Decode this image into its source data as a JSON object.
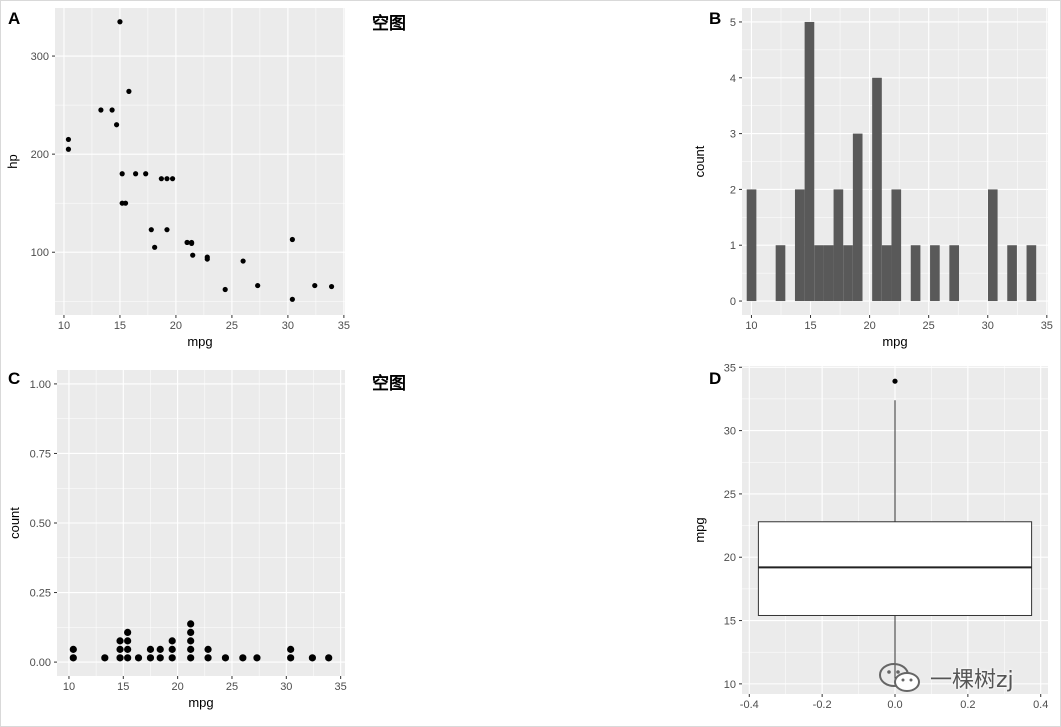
{
  "panels": {
    "A": {
      "letter": "A"
    },
    "B": {
      "letter": "B"
    },
    "C": {
      "letter": "C"
    },
    "D": {
      "letter": "D"
    }
  },
  "empty_labels": [
    "空图",
    "空图"
  ],
  "watermark": {
    "text": "一棵树zj",
    "icon": "wechat-icon"
  },
  "colors": {
    "panel_bg": "#ebebeb",
    "grid": "#ffffff",
    "bar": "#595959",
    "point": "#000000"
  },
  "chart_data": [
    {
      "panel": "A",
      "type": "scatter",
      "xlabel": "mpg",
      "ylabel": "hp",
      "xlim": [
        9.2,
        35.1
      ],
      "ylim": [
        36,
        349
      ],
      "xticks": [
        10,
        15,
        20,
        25,
        30,
        35
      ],
      "yticks": [
        100,
        200,
        300
      ],
      "points": [
        [
          21.0,
          110
        ],
        [
          21.0,
          110
        ],
        [
          22.8,
          93
        ],
        [
          21.4,
          110
        ],
        [
          18.7,
          175
        ],
        [
          18.1,
          105
        ],
        [
          14.3,
          245
        ],
        [
          24.4,
          62
        ],
        [
          22.8,
          95
        ],
        [
          19.2,
          123
        ],
        [
          17.8,
          123
        ],
        [
          16.4,
          180
        ],
        [
          17.3,
          180
        ],
        [
          15.2,
          180
        ],
        [
          10.4,
          205
        ],
        [
          10.4,
          215
        ],
        [
          14.7,
          230
        ],
        [
          32.4,
          66
        ],
        [
          30.4,
          52
        ],
        [
          33.9,
          65
        ],
        [
          21.5,
          97
        ],
        [
          15.5,
          150
        ],
        [
          15.2,
          150
        ],
        [
          13.3,
          245
        ],
        [
          19.2,
          175
        ],
        [
          27.3,
          66
        ],
        [
          26.0,
          91
        ],
        [
          30.4,
          113
        ],
        [
          15.8,
          264
        ],
        [
          19.7,
          175
        ],
        [
          15.0,
          335
        ],
        [
          21.4,
          109
        ]
      ]
    },
    {
      "panel": "B",
      "type": "bar",
      "xlabel": "mpg",
      "ylabel": "count",
      "xlim": [
        9.2,
        35.1
      ],
      "ylim": [
        -0.25,
        5.25
      ],
      "xticks": [
        10,
        15,
        20,
        25,
        30,
        35
      ],
      "yticks": [
        0,
        1,
        2,
        3,
        4,
        5
      ],
      "binwidth": 0.8167,
      "bins_start": 10.0083,
      "counts": [
        2,
        0,
        0,
        1,
        0,
        2,
        5,
        1,
        1,
        2,
        1,
        3,
        0,
        4,
        1,
        2,
        0,
        1,
        0,
        1,
        0,
        1,
        0,
        0,
        0,
        2,
        0,
        1,
        0,
        1
      ]
    },
    {
      "panel": "C",
      "type": "scatter",
      "subtype": "dotplot",
      "xlabel": "mpg",
      "ylabel": "count",
      "xlim": [
        8.9,
        35.4
      ],
      "ylim": [
        -0.05,
        1.05
      ],
      "xticks": [
        10,
        15,
        20,
        25,
        30,
        35
      ],
      "yticks": [
        "0.00",
        "0.25",
        "0.50",
        "0.75",
        "1.00"
      ],
      "stacks": [
        [
          10.4,
          2
        ],
        [
          13.3,
          1
        ],
        [
          14.7,
          3
        ],
        [
          15.4,
          4
        ],
        [
          16.4,
          1
        ],
        [
          17.5,
          2
        ],
        [
          18.4,
          2
        ],
        [
          19.5,
          3
        ],
        [
          21.2,
          5
        ],
        [
          22.8,
          2
        ],
        [
          24.4,
          1
        ],
        [
          26.0,
          1
        ],
        [
          27.3,
          1
        ],
        [
          30.4,
          2
        ],
        [
          32.4,
          1
        ],
        [
          33.9,
          1
        ]
      ]
    },
    {
      "panel": "D",
      "type": "box",
      "xlabel": "",
      "ylabel": "mpg",
      "xlim": [
        -0.42,
        0.42
      ],
      "ylim": [
        9.2,
        35.1
      ],
      "xticks": [
        "-0.4",
        "-0.2",
        "0.0",
        "0.2",
        "0.4"
      ],
      "yticks": [
        10,
        15,
        20,
        25,
        30,
        35
      ],
      "box": {
        "x_left": -0.375,
        "x_right": 0.375,
        "whisker_low": 10.4,
        "q1": 15.4,
        "median": 19.2,
        "q3": 22.8,
        "whisker_high": 32.4,
        "outliers": [
          33.9
        ]
      }
    }
  ]
}
